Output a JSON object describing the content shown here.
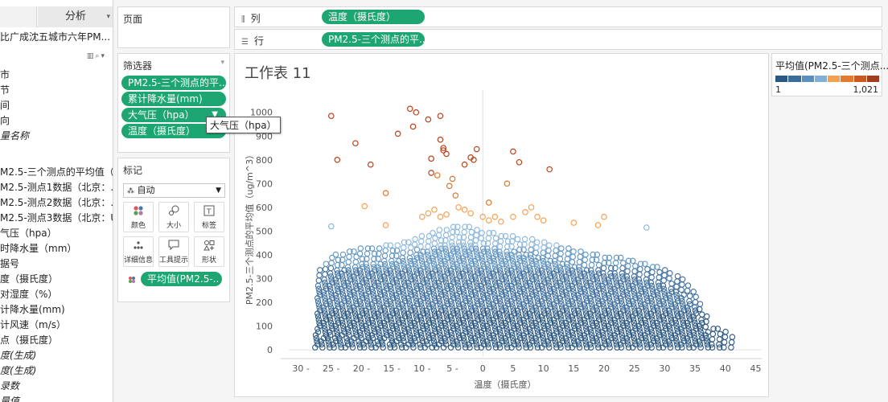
{
  "data_pane": {
    "analysis_tab": "分析",
    "source_name": "比广成沈五城市六年PM...",
    "fields": [
      {
        "label": "市",
        "italic": false
      },
      {
        "label": "节",
        "italic": false
      },
      {
        "label": "间",
        "italic": false
      },
      {
        "label": "向",
        "italic": false
      },
      {
        "label": "量名称",
        "italic": true
      },
      {
        "label": "M2.5-三个测点的平均值（...",
        "italic": false
      },
      {
        "label": "M2.5-测点1数据（北京：...",
        "italic": false
      },
      {
        "label": "M2.5-测点2数据（北京：...",
        "italic": false
      },
      {
        "label": "M2.5-测点3数据（北京：U...",
        "italic": false
      },
      {
        "label": "气压（hpa）",
        "italic": false
      },
      {
        "label": "时降水量（mm）",
        "italic": false
      },
      {
        "label": "据号",
        "italic": false
      },
      {
        "label": "度（摄氏度）",
        "italic": false
      },
      {
        "label": "对湿度（%）",
        "italic": false
      },
      {
        "label": "计降水量(mm)",
        "italic": false
      },
      {
        "label": "计风速（m/s）",
        "italic": false
      },
      {
        "label": "点（摄氏度）",
        "italic": false
      },
      {
        "label": "度(生成)",
        "italic": true
      },
      {
        "label": "度(生成)",
        "italic": true
      },
      {
        "label": "录数",
        "italic": true
      },
      {
        "label": "量值",
        "italic": true
      }
    ]
  },
  "pages_shelf": {
    "title": "页面"
  },
  "columns_shelf": {
    "label": "列",
    "pill": "温度（摄氏度）"
  },
  "rows_shelf": {
    "label": "行",
    "pill": "PM2.5-三个测点的平.."
  },
  "filters": {
    "title": "筛选器",
    "pills": [
      "PM2.5-三个测点的平..",
      "累计降水量(mm)",
      "大气压（hpa）",
      "温度（摄氏度）"
    ],
    "tooltip": "大气压（hpa）"
  },
  "marks": {
    "title": "标记",
    "type": "自动",
    "buttons": [
      {
        "label": "颜色",
        "icon": "color-dots-icon"
      },
      {
        "label": "大小",
        "icon": "size-icon"
      },
      {
        "label": "标签",
        "icon": "label-icon"
      },
      {
        "label": "详细信息",
        "icon": "detail-icon"
      },
      {
        "label": "工具提示",
        "icon": "tooltip-icon"
      },
      {
        "label": "形状",
        "icon": "shape-icon"
      }
    ],
    "color_pill": "平均值(PM2.5-.."
  },
  "worksheet": {
    "title": "工作表 11"
  },
  "legend": {
    "title": "平均值(PM2.5-三个测点...",
    "min": "1",
    "max": "1,021",
    "colors": [
      "#2a5783",
      "#3a6d9c",
      "#4f86b8",
      "#77a9d2",
      "#a3c8e4",
      "#f3a258",
      "#e07a2e",
      "#c65a1e",
      "#9e3d22"
    ]
  },
  "chart_data": {
    "type": "scatter",
    "xlabel": "温度（摄氏度）",
    "ylabel": "PM2.5-三个测点的平均值（ug/m^3）",
    "xlim": [
      -32,
      46
    ],
    "ylim": [
      -30,
      1060
    ],
    "x_ticks": [
      -30,
      -25,
      -20,
      -15,
      -10,
      -5,
      0,
      5,
      10,
      15,
      20,
      25,
      30,
      35,
      40,
      45
    ],
    "y_ticks": [
      0,
      100,
      200,
      300,
      400,
      500,
      600,
      700,
      800,
      900,
      1000
    ],
    "x_ticklabels": [
      "30 -",
      "25 -",
      "20 -",
      "15 -",
      "10 -",
      "5 -",
      "0",
      "5",
      "10",
      "15",
      "20",
      "25",
      "30",
      "35",
      "40",
      "45"
    ],
    "y_ticklabels": [
      "0",
      "100",
      "200",
      "300",
      "400",
      "500",
      "600",
      "700",
      "800",
      "900",
      "1000"
    ],
    "marker": "hollow-circle",
    "grid": false,
    "color_scale": {
      "min": 1,
      "max": 1021
    },
    "envelope": {
      "x": [
        -27,
        -25,
        -22,
        -20,
        -17,
        -15,
        -12,
        -10,
        -7,
        -5,
        -2,
        0,
        3,
        5,
        8,
        10,
        13,
        15,
        18,
        20,
        23,
        25,
        28,
        30,
        33,
        35,
        38,
        41
      ],
      "ymax": [
        340,
        400,
        420,
        430,
        440,
        450,
        460,
        480,
        510,
        520,
        520,
        500,
        490,
        480,
        470,
        460,
        440,
        420,
        410,
        400,
        390,
        380,
        360,
        340,
        300,
        250,
        100,
        70
      ]
    },
    "outliers": [
      {
        "x": -25,
        "y": 985
      },
      {
        "x": -24,
        "y": 800
      },
      {
        "x": -21,
        "y": 870
      },
      {
        "x": -18.5,
        "y": 780
      },
      {
        "x": -19.5,
        "y": 605
      },
      {
        "x": -16,
        "y": 660
      },
      {
        "x": -14,
        "y": 910
      },
      {
        "x": -12,
        "y": 1015
      },
      {
        "x": -11,
        "y": 1000
      },
      {
        "x": -11.5,
        "y": 940
      },
      {
        "x": -9,
        "y": 970
      },
      {
        "x": -8.5,
        "y": 805
      },
      {
        "x": -8.5,
        "y": 745
      },
      {
        "x": -7.5,
        "y": 735
      },
      {
        "x": -7,
        "y": 985
      },
      {
        "x": -7,
        "y": 885
      },
      {
        "x": -6.5,
        "y": 850
      },
      {
        "x": -6.5,
        "y": 840
      },
      {
        "x": -6,
        "y": 825
      },
      {
        "x": -5.5,
        "y": 690
      },
      {
        "x": -5,
        "y": 720
      },
      {
        "x": -4.5,
        "y": 650
      },
      {
        "x": -3,
        "y": 780
      },
      {
        "x": -2,
        "y": 810
      },
      {
        "x": -1.5,
        "y": 800
      },
      {
        "x": -1,
        "y": 845
      },
      {
        "x": 1,
        "y": 620
      },
      {
        "x": 4,
        "y": 700
      },
      {
        "x": 5,
        "y": 835
      },
      {
        "x": 6,
        "y": 790
      },
      {
        "x": 8,
        "y": 600
      },
      {
        "x": 11,
        "y": 760
      },
      {
        "x": -25,
        "y": 520
      },
      {
        "x": -16,
        "y": 525
      },
      {
        "x": -10,
        "y": 560
      },
      {
        "x": -9,
        "y": 575
      },
      {
        "x": -8,
        "y": 590
      },
      {
        "x": -7,
        "y": 560
      },
      {
        "x": -6,
        "y": 570
      },
      {
        "x": -4,
        "y": 600
      },
      {
        "x": -3,
        "y": 590
      },
      {
        "x": -2,
        "y": 575
      },
      {
        "x": 0,
        "y": 560
      },
      {
        "x": 1,
        "y": 545
      },
      {
        "x": 2,
        "y": 560
      },
      {
        "x": 3,
        "y": 540
      },
      {
        "x": 5,
        "y": 560
      },
      {
        "x": 7,
        "y": 580
      },
      {
        "x": 9,
        "y": 560
      },
      {
        "x": 10,
        "y": 545
      },
      {
        "x": 15,
        "y": 535
      },
      {
        "x": 19,
        "y": 525
      },
      {
        "x": 20,
        "y": 560
      },
      {
        "x": 27,
        "y": 515
      }
    ]
  }
}
